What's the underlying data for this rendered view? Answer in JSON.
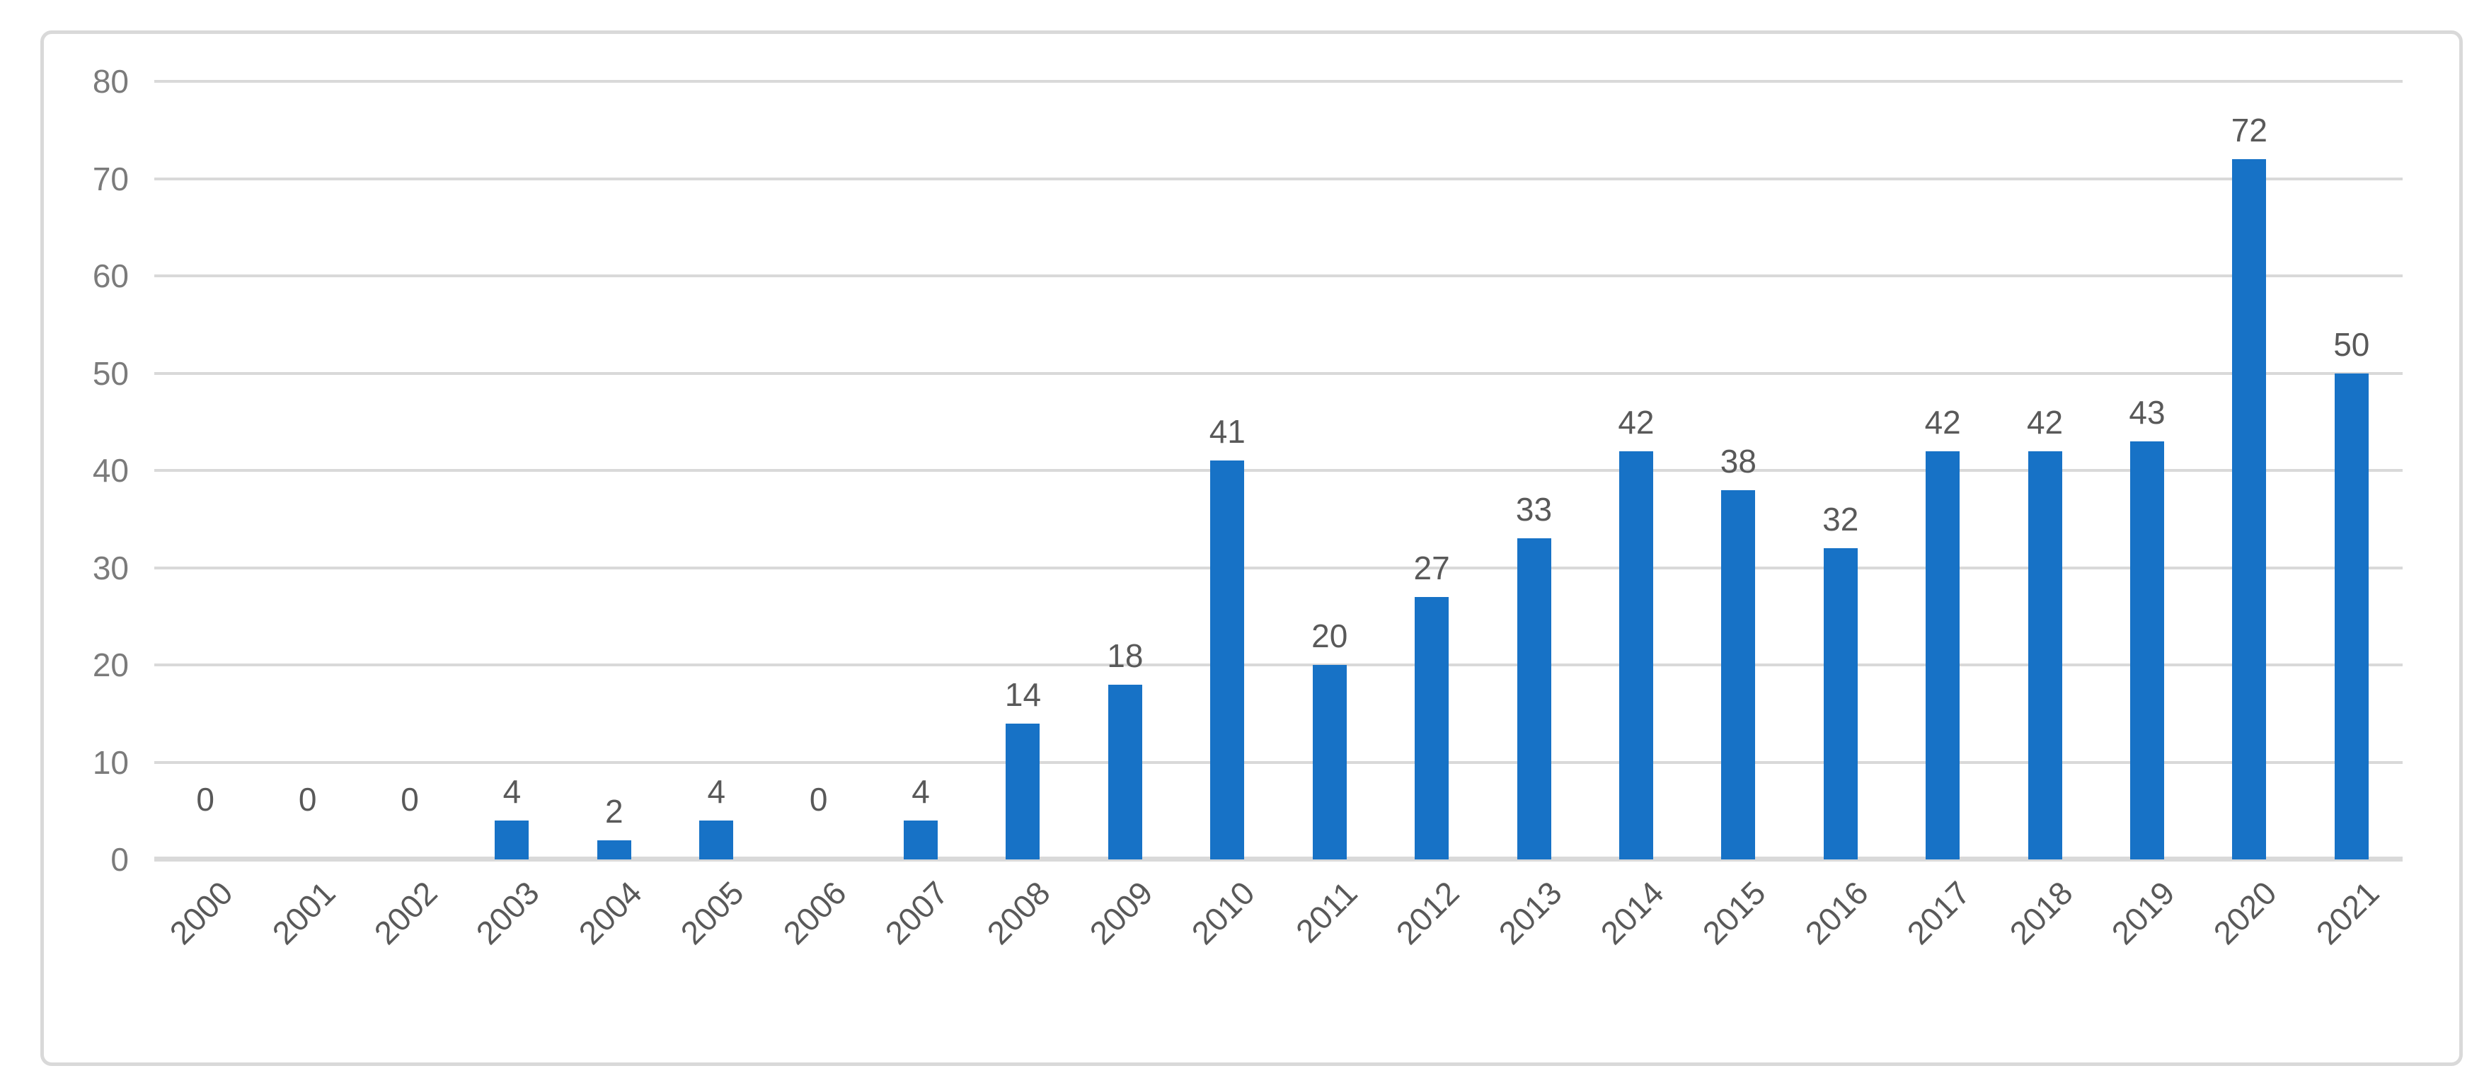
{
  "chart_data": {
    "type": "bar",
    "title": "",
    "xlabel": "",
    "ylabel": "",
    "categories": [
      "2000",
      "2001",
      "2002",
      "2003",
      "2004",
      "2005",
      "2006",
      "2007",
      "2008",
      "2009",
      "2010",
      "2011",
      "2012",
      "2013",
      "2014",
      "2015",
      "2016",
      "2017",
      "2018",
      "2019",
      "2020",
      "2021"
    ],
    "values": [
      0,
      0,
      0,
      4,
      2,
      4,
      0,
      4,
      14,
      18,
      41,
      20,
      27,
      33,
      42,
      38,
      32,
      42,
      42,
      43,
      72,
      50
    ],
    "data_labels_shown": true,
    "ylim": [
      0,
      80
    ],
    "ytick_step": 10,
    "yticks": [
      80,
      70,
      60,
      50,
      40,
      30,
      20,
      10,
      0
    ],
    "grid": "horizontal",
    "legend": "none",
    "x_tick_rotation_deg": 45
  },
  "colors": {
    "bar": "#1772C6",
    "gridline": "#D9D9D9",
    "axis_line": "#D9D9D9",
    "frame_border": "#D9D9D9",
    "background": "#FFFFFF",
    "y_tick_label": "#7B7B7B",
    "x_tick_label": "#595959",
    "data_label": "#595959"
  }
}
